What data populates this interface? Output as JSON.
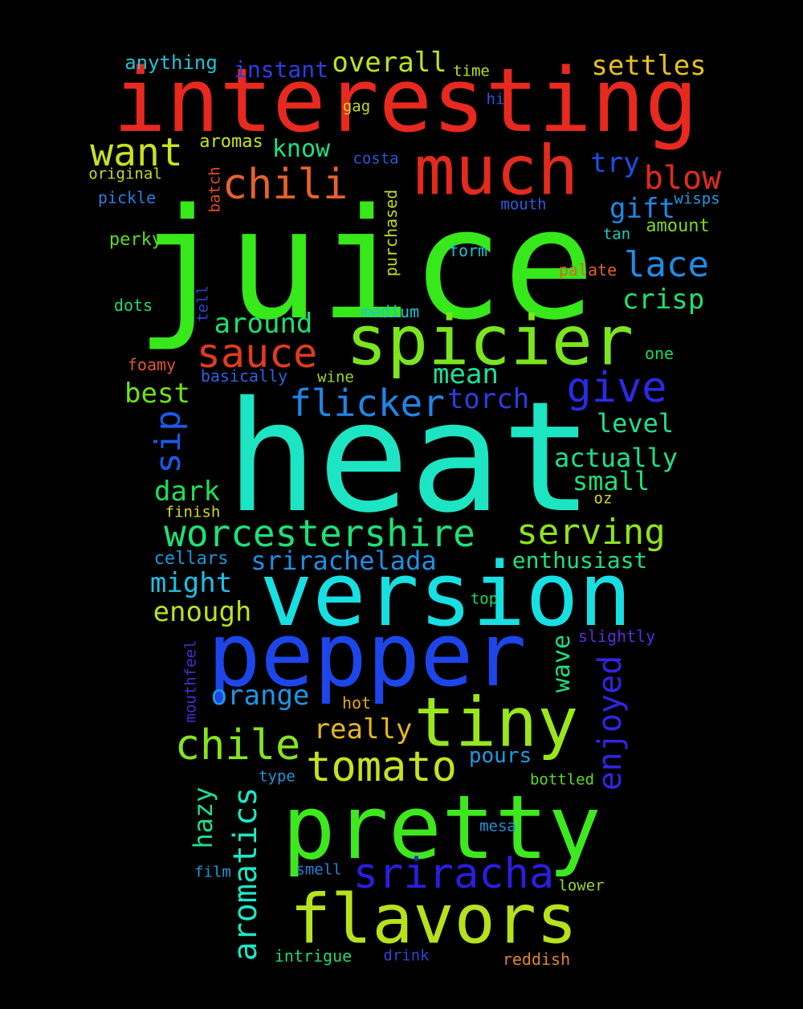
{
  "words": [
    {
      "text": "juice",
      "color": "#37e81a"
    },
    {
      "text": "heat",
      "color": "#1de5c4"
    },
    {
      "text": "interesting",
      "color": "#e8291f"
    },
    {
      "text": "version",
      "color": "#17dfe2"
    },
    {
      "text": "pepper",
      "color": "#1d46ea"
    },
    {
      "text": "pretty",
      "color": "#3ee81f"
    },
    {
      "text": "spicier",
      "color": "#7be51f"
    },
    {
      "text": "much",
      "color": "#e22b1d"
    },
    {
      "text": "tiny",
      "color": "#9ae61c"
    },
    {
      "text": "flavors",
      "color": "#b7e11d"
    },
    {
      "text": "worcestershire",
      "color": "#1ee07a"
    },
    {
      "text": "chili",
      "color": "#e6622b"
    },
    {
      "text": "sriracha",
      "color": "#2c1de0"
    },
    {
      "text": "tomato",
      "color": "#c6e21e"
    },
    {
      "text": "sauce",
      "color": "#e23a1f"
    },
    {
      "text": "give",
      "color": "#2a2ae8"
    },
    {
      "text": "want",
      "color": "#c8e220"
    },
    {
      "text": "chile",
      "color": "#86e41f"
    },
    {
      "text": "aromatics",
      "color": "#1de6c4"
    },
    {
      "text": "flicker",
      "color": "#1d86e6"
    },
    {
      "text": "serving",
      "color": "#8ee31e"
    },
    {
      "text": "enjoyed",
      "color": "#3224e4"
    },
    {
      "text": "blow",
      "color": "#e22b1d"
    },
    {
      "text": "lace",
      "color": "#1d8de6"
    },
    {
      "text": "sip",
      "color": "#1d58e6"
    },
    {
      "text": "srirachelada",
      "color": "#1d90e6"
    },
    {
      "text": "overall",
      "color": "#bde41e"
    },
    {
      "text": "settles",
      "color": "#e6c11d"
    },
    {
      "text": "crisp",
      "color": "#1ee06d"
    },
    {
      "text": "torch",
      "color": "#2a3ee4"
    },
    {
      "text": "gift",
      "color": "#1d8ae6"
    },
    {
      "text": "try",
      "color": "#1d4fe6"
    },
    {
      "text": "orange",
      "color": "#1d96e6"
    },
    {
      "text": "really",
      "color": "#e6b71d"
    },
    {
      "text": "might",
      "color": "#1dc1e6"
    },
    {
      "text": "enough",
      "color": "#b8e21e"
    },
    {
      "text": "around",
      "color": "#1ee06a"
    },
    {
      "text": "mean",
      "color": "#1de09d"
    },
    {
      "text": "best",
      "color": "#6ee21e"
    },
    {
      "text": "level",
      "color": "#1ee089"
    },
    {
      "text": "actually",
      "color": "#1ee08a"
    },
    {
      "text": "small",
      "color": "#1ee078"
    },
    {
      "text": "dark",
      "color": "#1ee05a"
    },
    {
      "text": "know",
      "color": "#1ee083"
    },
    {
      "text": "instant",
      "color": "#2c3de6"
    },
    {
      "text": "wave",
      "color": "#1ee078"
    },
    {
      "text": "hazy",
      "color": "#1ee08f"
    },
    {
      "text": "enthusiast",
      "color": "#1ee07d"
    },
    {
      "text": "pours",
      "color": "#1d9ae6"
    },
    {
      "text": "anything",
      "color": "#1dc4d8"
    },
    {
      "text": "aromas",
      "color": "#c4e21e"
    },
    {
      "text": "time",
      "color": "#b9e01e"
    },
    {
      "text": "hi",
      "color": "#2a55e0"
    },
    {
      "text": "gag",
      "color": "#c8d81e"
    },
    {
      "text": "costa",
      "color": "#2a56e0"
    },
    {
      "text": "original",
      "color": "#c9d81e"
    },
    {
      "text": "batch",
      "color": "#e04b2a"
    },
    {
      "text": "pickle",
      "color": "#2a7de0"
    },
    {
      "text": "purchased",
      "color": "#c4d81e"
    },
    {
      "text": "mouth",
      "color": "#2a5de0"
    },
    {
      "text": "wisps",
      "color": "#1d9ae0"
    },
    {
      "text": "amount",
      "color": "#7cd81e"
    },
    {
      "text": "perky",
      "color": "#63d81e"
    },
    {
      "text": "tan",
      "color": "#1dc9c4"
    },
    {
      "text": "form",
      "color": "#1dc4d0"
    },
    {
      "text": "palate",
      "color": "#e0602a"
    },
    {
      "text": "tell",
      "color": "#2a46d8"
    },
    {
      "text": "dots",
      "color": "#1ed872"
    },
    {
      "text": "medium",
      "color": "#1dc1d8"
    },
    {
      "text": "one",
      "color": "#1ed85e"
    },
    {
      "text": "foamy",
      "color": "#e0572a"
    },
    {
      "text": "basically",
      "color": "#2a62e0"
    },
    {
      "text": "wine",
      "color": "#9ed81e"
    },
    {
      "text": "finish",
      "color": "#d4d81e"
    },
    {
      "text": "oz",
      "color": "#d4d81e"
    },
    {
      "text": "cellars",
      "color": "#1d96d8"
    },
    {
      "text": "top",
      "color": "#1ed86a"
    },
    {
      "text": "slightly",
      "color": "#5a2ae0"
    },
    {
      "text": "mouthfeel",
      "color": "#4a2ad8"
    },
    {
      "text": "hot",
      "color": "#e0a81e"
    },
    {
      "text": "type",
      "color": "#1d96d8"
    },
    {
      "text": "bottled",
      "color": "#5ed81e"
    },
    {
      "text": "mesa",
      "color": "#1d96d8"
    },
    {
      "text": "film",
      "color": "#1d96d8"
    },
    {
      "text": "smell",
      "color": "#1d82d8"
    },
    {
      "text": "lower",
      "color": "#9ed81e"
    },
    {
      "text": "intrigue",
      "color": "#1ed86a"
    },
    {
      "text": "drink",
      "color": "#2a46d8"
    },
    {
      "text": "reddish",
      "color": "#e0842a"
    }
  ]
}
